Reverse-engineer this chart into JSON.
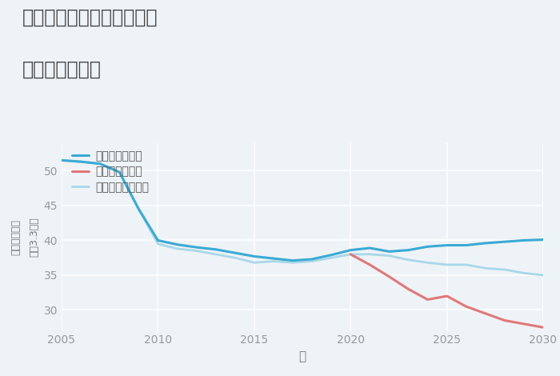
{
  "title_line1": "奈良県奈良市月ヶ瀬尾山の",
  "title_line2": "土地の価格推移",
  "xlabel": "年",
  "ylabel_chars": [
    "坪",
    "（",
    "3",
    ".",
    "3",
    "㎡",
    "）",
    " ",
    "単",
    "価",
    "（",
    "万",
    "円",
    "）"
  ],
  "background_color": "#eef3f7",
  "plot_background_color": "#eef3f7",
  "grid_color": "#ffffff",
  "xlim": [
    2005,
    2030
  ],
  "ylim": [
    27,
    54
  ],
  "yticks": [
    30,
    35,
    40,
    45,
    50
  ],
  "xticks": [
    2005,
    2010,
    2015,
    2020,
    2025,
    2030
  ],
  "good_scenario": {
    "label": "グッドシナリオ",
    "color": "#3baad4",
    "linewidth": 2.2,
    "x": [
      2005,
      2006,
      2007,
      2008,
      2009,
      2010,
      2011,
      2012,
      2013,
      2014,
      2015,
      2016,
      2017,
      2018,
      2019,
      2020,
      2021,
      2022,
      2023,
      2024,
      2025,
      2026,
      2027,
      2028,
      2029,
      2030
    ],
    "y": [
      51.5,
      51.3,
      51.0,
      49.8,
      44.5,
      40.0,
      39.4,
      39.0,
      38.7,
      38.2,
      37.7,
      37.4,
      37.1,
      37.3,
      37.9,
      38.6,
      38.9,
      38.4,
      38.6,
      39.1,
      39.3,
      39.3,
      39.6,
      39.8,
      40.0,
      40.1
    ]
  },
  "bad_scenario": {
    "label": "バッドシナリオ",
    "color": "#e07878",
    "linewidth": 2.2,
    "x": [
      2020,
      2021,
      2022,
      2023,
      2024,
      2025,
      2026,
      2027,
      2028,
      2029,
      2030
    ],
    "y": [
      38.0,
      36.5,
      34.8,
      33.0,
      31.5,
      32.0,
      30.5,
      29.5,
      28.5,
      28.0,
      27.5
    ]
  },
  "normal_scenario": {
    "label": "ノーマルシナリオ",
    "color": "#a8d8e8",
    "linewidth": 2.0,
    "x": [
      2005,
      2006,
      2007,
      2008,
      2009,
      2010,
      2011,
      2012,
      2013,
      2014,
      2015,
      2016,
      2017,
      2018,
      2019,
      2020,
      2021,
      2022,
      2023,
      2024,
      2025,
      2026,
      2027,
      2028,
      2029,
      2030
    ],
    "y": [
      51.5,
      51.3,
      51.0,
      49.8,
      44.5,
      39.5,
      38.8,
      38.5,
      38.0,
      37.5,
      36.8,
      37.0,
      36.8,
      37.0,
      37.5,
      38.0,
      38.0,
      37.8,
      37.2,
      36.8,
      36.5,
      36.5,
      36.0,
      35.8,
      35.3,
      35.0
    ]
  }
}
